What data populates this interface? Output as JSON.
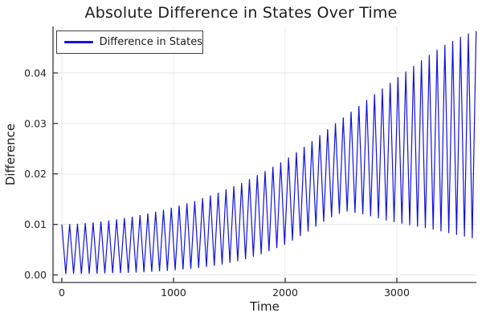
{
  "chart_data": {
    "type": "line",
    "title": "Absolute Difference in States Over Time",
    "xlabel": "Time",
    "ylabel": "Difference",
    "grid": true,
    "legend_position": "top-left",
    "series": [
      {
        "name": "Difference in States",
        "color": "#1212e0"
      }
    ],
    "xlim": [
      -79,
      3712
    ],
    "ylim": [
      -0.0015,
      0.0492
    ],
    "xticks": {
      "values": [
        0,
        1000,
        2000,
        3000
      ],
      "labels": [
        "0",
        "1000",
        "2000",
        "3000"
      ]
    },
    "yticks": {
      "values": [
        0,
        0.01,
        0.02,
        0.03,
        0.04
      ],
      "labels": [
        "0.00",
        "0.01",
        "0.02",
        "0.03",
        "0.04"
      ]
    },
    "oscillation": {
      "shape": "triangle",
      "period": 70,
      "t_start": 0,
      "t_end": 3710,
      "starts_at": "upper"
    },
    "upper_envelope": {
      "t": [
        0,
        200,
        400,
        600,
        800,
        1000,
        1200,
        1400,
        1600,
        1800,
        2000,
        2200,
        2400,
        2600,
        2800,
        3000,
        3200,
        3400,
        3600,
        3710
      ],
      "v": [
        0.01,
        0.0102,
        0.0107,
        0.0114,
        0.0123,
        0.0134,
        0.0147,
        0.0163,
        0.0181,
        0.0203,
        0.0228,
        0.0258,
        0.0292,
        0.0325,
        0.0358,
        0.039,
        0.0422,
        0.0452,
        0.0475,
        0.0483
      ]
    },
    "lower_envelope": {
      "t": [
        0,
        200,
        400,
        600,
        800,
        1000,
        1200,
        1400,
        1600,
        1800,
        2000,
        2200,
        2400,
        2540,
        2700,
        2900,
        3100,
        3300,
        3500,
        3710
      ],
      "v": [
        0.0002,
        0.0002,
        0.0003,
        0.0004,
        0.0006,
        0.0009,
        0.0013,
        0.0019,
        0.0028,
        0.0042,
        0.006,
        0.0085,
        0.0113,
        0.0126,
        0.012,
        0.0108,
        0.0099,
        0.0091,
        0.0081,
        0.0071
      ]
    },
    "colors": {
      "series": "#1212e0",
      "gridline": "#e8e8e8",
      "spine": "#36363a",
      "tick_label": "#242424",
      "background": "#ffffff"
    }
  }
}
